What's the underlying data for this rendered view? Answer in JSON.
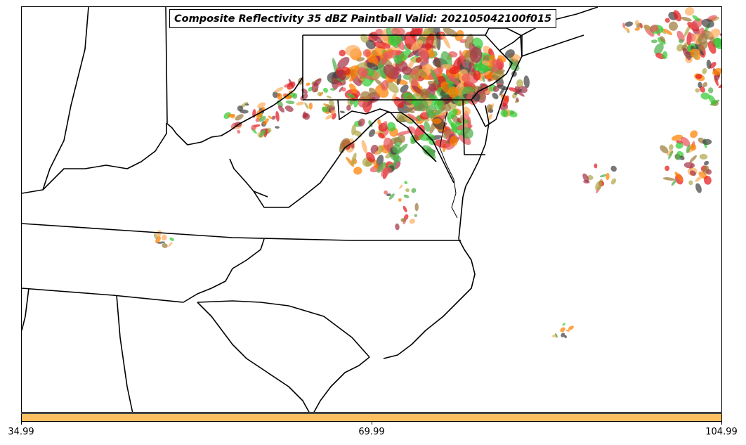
{
  "map": {
    "title": "Composite Reflectivity 35 dBZ Paintball Valid: 202105042100f015",
    "colorbar": {
      "color": "#fdbf60",
      "tick_labels": [
        "34.99",
        "69.99",
        "104.99"
      ]
    },
    "layers": {
      "boundaries": "state-borders",
      "paintball_colors": [
        "#e41a1c",
        "#ff7f00",
        "#fdae61",
        "#e8585c",
        "#33cc33",
        "#4daf4a",
        "#b2a84a",
        "#a63446",
        "#444444",
        "#9e7c3c"
      ]
    }
  }
}
